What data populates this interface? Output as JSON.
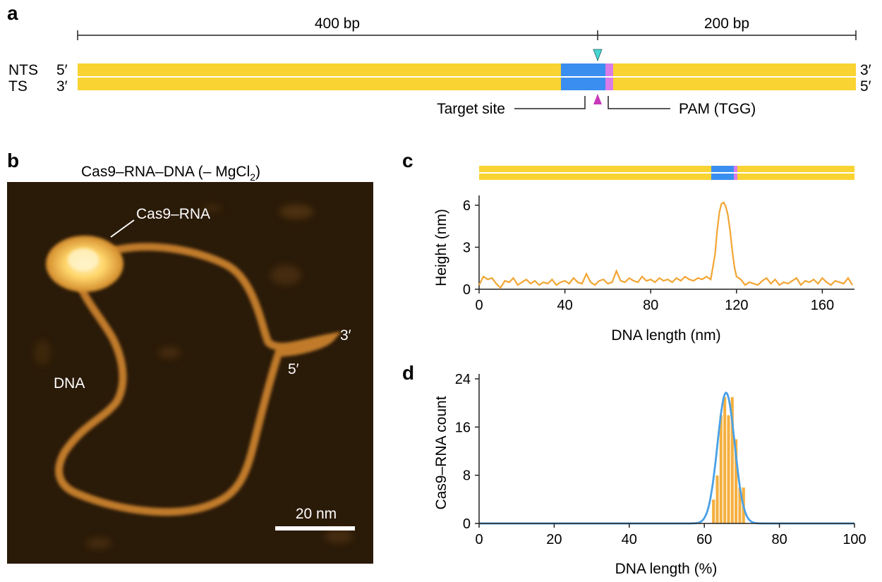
{
  "panels": {
    "a": "a",
    "b": "b",
    "c": "c",
    "d": "d"
  },
  "colors": {
    "dna": "#F9D331",
    "target": "#3A8EF0",
    "pam": "#D97CE8",
    "cleave_nts": "#48D6D1",
    "cleave_ts": "#C838B8",
    "profile": "#F2A534",
    "hist_bar": "#F5B040",
    "fit": "#4AA1E6",
    "afm_bg": "#2A1A08",
    "afm_dna": "#C07A2C",
    "afm_protein": "#FFD66A"
  },
  "panel_a": {
    "left_len": "400 bp",
    "right_len": "200 bp",
    "nts": "NTS",
    "ts": "TS",
    "nts_left": "5′",
    "ts_left": "3′",
    "nts_right": "3′",
    "ts_right": "5′",
    "target_label": "Target site",
    "pam_label": "PAM (TGG)"
  },
  "panel_b": {
    "title_main": "Cas9–RNA–DNA (– MgCl",
    "title_sub": "2",
    "title_end": ")",
    "protein_label": "Cas9–RNA",
    "dna_label": "DNA",
    "end3": "3′",
    "end5": "5′",
    "scale_label": "20 nm",
    "scale_nm": 20
  },
  "chart_data": [
    {
      "panel": "c",
      "type": "line",
      "xlabel": "DNA length (nm)",
      "ylabel": "Height (nm)",
      "xlim": [
        0,
        175
      ],
      "ylim": [
        0,
        6.3
      ],
      "xticks": [
        0,
        40,
        80,
        120,
        160
      ],
      "yticks": [
        0,
        3,
        6
      ],
      "grid": false,
      "x": [
        0,
        2,
        4,
        6,
        8,
        10,
        12,
        14,
        16,
        18,
        20,
        22,
        24,
        26,
        28,
        30,
        32,
        34,
        36,
        38,
        40,
        42,
        44,
        46,
        48,
        50,
        52,
        54,
        56,
        58,
        60,
        62,
        64,
        66,
        68,
        70,
        72,
        74,
        76,
        78,
        80,
        82,
        84,
        86,
        88,
        90,
        92,
        94,
        96,
        98,
        100,
        102,
        104,
        106,
        108,
        110,
        111,
        112,
        113,
        114,
        115,
        116,
        117,
        118,
        119,
        120,
        122,
        124,
        126,
        128,
        130,
        132,
        134,
        136,
        138,
        140,
        142,
        144,
        146,
        148,
        150,
        152,
        154,
        156,
        158,
        160,
        162,
        164,
        166,
        168,
        170,
        172,
        174
      ],
      "y": [
        0.3,
        0.9,
        0.7,
        0.8,
        0.4,
        0.1,
        0.6,
        0.5,
        0.8,
        0.3,
        0.5,
        0.7,
        0.4,
        0.6,
        0.3,
        0.5,
        0.4,
        0.7,
        0.3,
        0.5,
        0.6,
        0.4,
        0.8,
        0.5,
        0.4,
        1.1,
        0.5,
        0.3,
        0.6,
        0.7,
        0.4,
        0.5,
        1.3,
        0.6,
        0.5,
        0.8,
        0.6,
        0.5,
        0.9,
        0.6,
        0.7,
        0.5,
        0.8,
        0.6,
        0.7,
        0.5,
        0.8,
        0.6,
        0.9,
        0.7,
        0.6,
        0.8,
        0.7,
        0.9,
        0.7,
        2.5,
        4.2,
        5.5,
        6.1,
        6.2,
        5.9,
        5.3,
        4.2,
        2.8,
        1.6,
        0.9,
        0.7,
        0.3,
        0.5,
        0.4,
        0.3,
        0.6,
        0.8,
        0.4,
        0.7,
        0.3,
        0.5,
        0.4,
        0.6,
        0.8,
        0.3,
        0.6,
        0.5,
        0.7,
        0.4,
        0.8,
        0.5,
        0.3,
        0.6,
        0.5,
        0.4,
        0.8,
        0.3
      ]
    },
    {
      "panel": "d",
      "type": "bar",
      "xlabel": "DNA length (%)",
      "ylabel": "Cas9–RNA count",
      "xlim": [
        0,
        100
      ],
      "ylim": [
        0,
        24
      ],
      "xticks": [
        0,
        20,
        40,
        60,
        80,
        100
      ],
      "yticks": [
        0,
        8,
        16,
        24
      ],
      "grid": false,
      "bins_start": [
        62,
        63,
        64,
        65,
        66,
        67,
        68,
        69,
        70
      ],
      "bin_width": 1,
      "values": [
        4,
        8,
        18,
        21,
        18,
        21,
        14,
        6,
        6
      ],
      "fit": {
        "type": "gaussian",
        "peak": 21.7,
        "mean": 65.8,
        "sd": 2.3
      }
    }
  ]
}
